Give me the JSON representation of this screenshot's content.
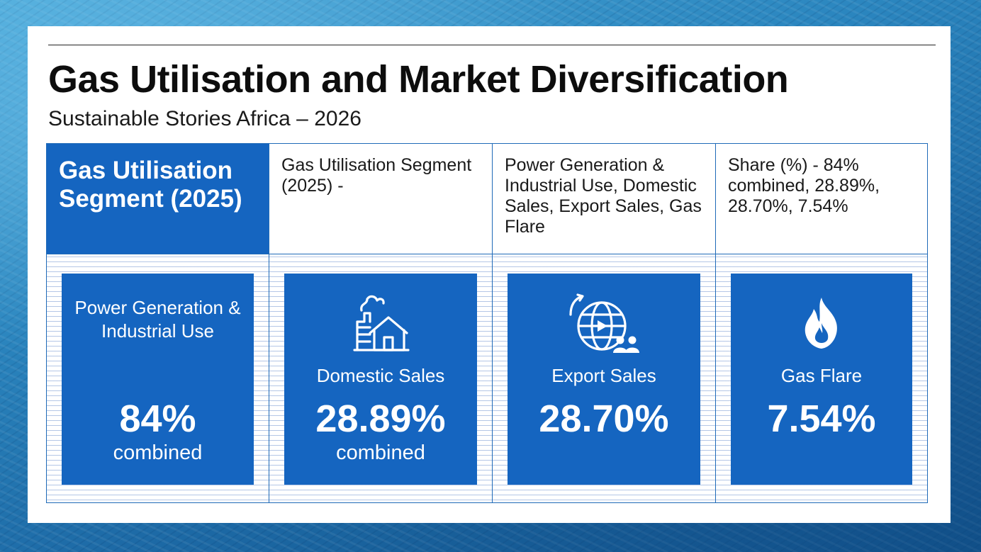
{
  "header": {
    "title": "Gas Utilisation and Market Diversification",
    "subtitle": "Sustainable Stories Africa – 2026"
  },
  "table": {
    "headers": [
      "Gas Utilisation Segment (2025)",
      "Gas Utilisation Segment (2025) -",
      "Power Generation & Industrial Use, Domestic Sales, Export Sales, Gas Flare",
      "Share (%) - 84% combined, 28.89%, 28.70%, 7.54%"
    ]
  },
  "tiles": [
    {
      "label": "Power Generation & Industrial Use",
      "value": "84%",
      "sub": "combined",
      "icon": "none"
    },
    {
      "label": "Domestic Sales",
      "value": "28.89%",
      "sub": "combined",
      "icon": "factory-house-icon"
    },
    {
      "label": "Export Sales",
      "value": "28.70%",
      "sub": "",
      "icon": "globe-export-icon"
    },
    {
      "label": "Gas Flare",
      "value": "7.54%",
      "sub": "",
      "icon": "flame-icon"
    }
  ],
  "colors": {
    "accent": "#1565c0",
    "card": "#ffffff",
    "text": "#0d0d0d"
  }
}
